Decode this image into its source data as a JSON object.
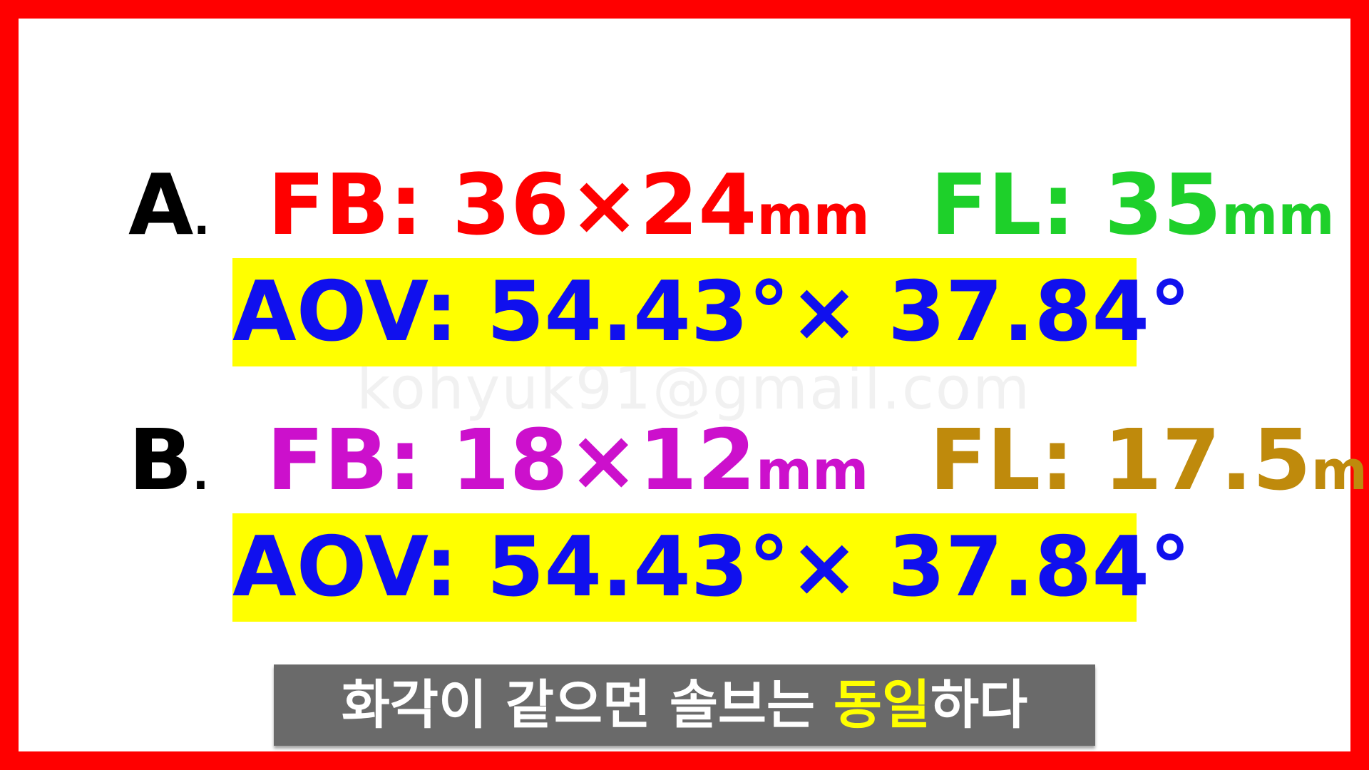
{
  "colors": {
    "frame": "#ff0000",
    "letter": "#000000",
    "a_fb": "#ff0000",
    "a_fl": "#1ed02a",
    "b_fb": "#cc10cc",
    "b_fl": "#bf8a0c",
    "aov_text": "#1010ee",
    "aov_bg": "#ffff00",
    "caption_bg": "#6a6a6a",
    "caption_text": "#ffffff",
    "caption_highlight": "#ffff00"
  },
  "row_a": {
    "letter": "A",
    "dot": ".",
    "fb_label": "FB:",
    "fb_value": "36×24",
    "fb_unit": "mm",
    "fl_label": "FL:",
    "fl_value": "35",
    "fl_unit": "mm",
    "aov": "AOV: 54.43°× 37.84°"
  },
  "row_b": {
    "letter": "B",
    "dot": ".",
    "fb_label": "FB:",
    "fb_value": "18×12",
    "fb_unit": "mm",
    "fl_label": "FL:",
    "fl_value": "17.5",
    "fl_unit": "mm",
    "aov": "AOV: 54.43°× 37.84°"
  },
  "watermark": "kohyuk91@gmail.com",
  "caption": {
    "before": "화각이 같으면 솔브는 ",
    "highlight": "동일",
    "after": "하다"
  }
}
